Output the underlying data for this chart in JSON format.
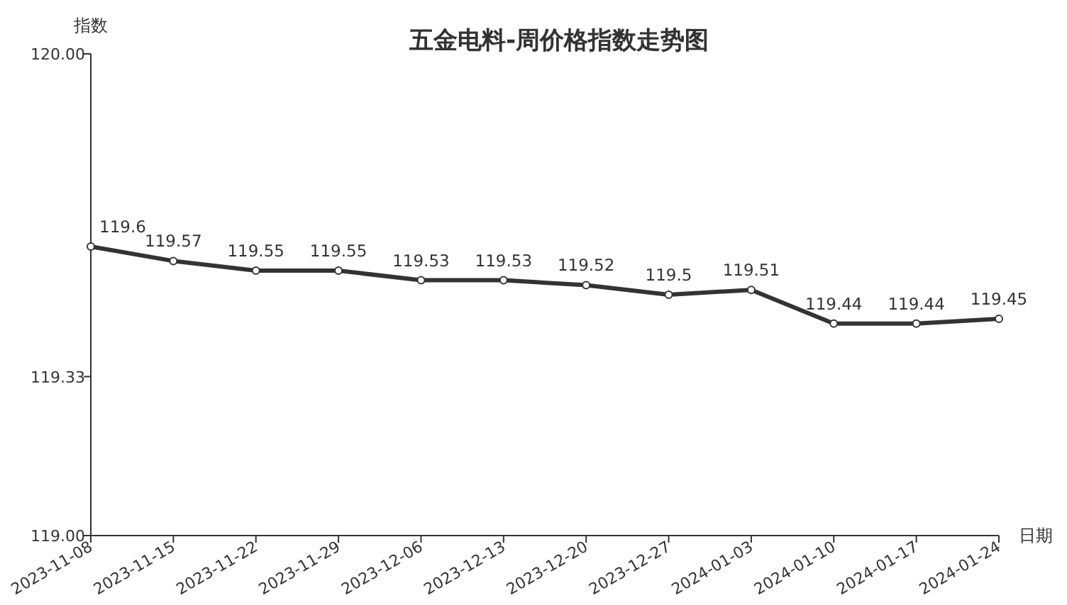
{
  "chart_data": {
    "type": "line",
    "title": "五金电料-周价格指数走势图",
    "xlabel": "日期",
    "ylabel": "指数",
    "categories": [
      "2023-11-08",
      "2023-11-15",
      "2023-11-22",
      "2023-11-29",
      "2023-12-06",
      "2023-12-13",
      "2023-12-20",
      "2023-12-27",
      "2024-01-03",
      "2024-01-10",
      "2024-01-17",
      "2024-01-24"
    ],
    "series": [
      {
        "color": "#333333",
        "values": [
          119.6,
          119.57,
          119.55,
          119.55,
          119.53,
          119.53,
          119.52,
          119.5,
          119.51,
          119.44,
          119.44,
          119.45
        ]
      }
    ],
    "ylim": [
      119,
      120
    ],
    "yticks": [
      {
        "value": 119,
        "label": "119.00"
      },
      119.33,
      {
        "value": 120,
        "label": "120.00"
      }
    ],
    "data_labels": true,
    "marker": "circle",
    "line_style": "solid",
    "grid": false
  }
}
